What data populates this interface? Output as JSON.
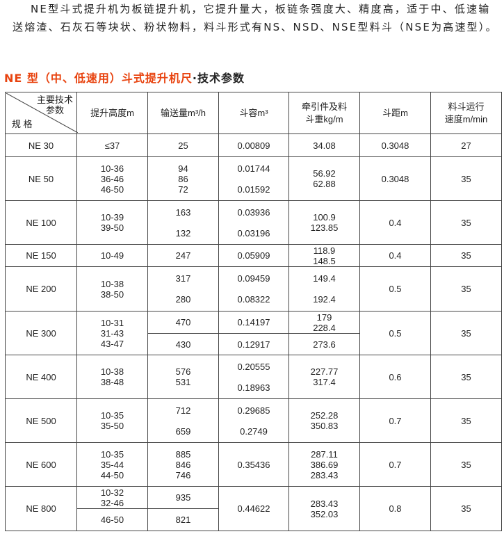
{
  "intro": "NE型斗式提升机为板链提升机，它提升量大，板链条强度大、精度高，适于中、低速输送熔渣、石灰石等块状、粉状物料，料斗形式有NS、NSD、NSE型料斗（NSE为高速型）。",
  "title": {
    "red": "NE 型（中、低速用）斗式提升机尺",
    "black": "·技术参数"
  },
  "colors": {
    "title_accent": "#e8430f"
  },
  "header": {
    "corner_top": "主要技术\n参数",
    "corner_bottom": "规 格",
    "cols": [
      "提升高度m",
      "输送量m³/h",
      "斗容m³",
      "牵引件及料\n斗重kg/m",
      "斗距m",
      "料斗运行\n速度m/min"
    ]
  },
  "rows": [
    {
      "spec": "NE 30",
      "height": "≤37",
      "flow": "25",
      "cap": "0.00809",
      "weight": "34.08",
      "pitch": "0.3048",
      "speed": "27"
    },
    {
      "spec": "NE 50",
      "height": "10-36\n36-46\n46-50",
      "flow": "94\n86\n72",
      "cap": "0.01744\n\n0.01592",
      "weight": "56.92\n62.88",
      "pitch": "0.3048",
      "speed": "35"
    },
    {
      "spec": "NE 100",
      "height": "10-39\n39-50",
      "flow": "163\n\n132",
      "cap": "0.03936\n\n0.03196",
      "weight": "100.9\n123.85",
      "pitch": "0.4",
      "speed": "35"
    },
    {
      "spec": "NE 150",
      "height": "10-49",
      "flow": "247",
      "cap": "0.05909",
      "weight": "118.9\n148.5",
      "pitch": "0.4",
      "speed": "35"
    },
    {
      "spec": "NE 200",
      "height": "10-38\n38-50",
      "flow": "317\n\n280",
      "cap": "0.09459\n\n0.08322",
      "weight": "149.4\n\n192.4",
      "pitch": "0.5",
      "speed": "35"
    },
    {
      "spec": "NE 300",
      "height": "10-31\n31-43\n43-47",
      "flow": [
        "470",
        "430"
      ],
      "cap": [
        "0.14197",
        "0.12917"
      ],
      "weight": [
        "179\n228.4",
        "273.6"
      ],
      "pitch": "0.5",
      "speed": "35"
    },
    {
      "spec": "NE 400",
      "height": "10-38\n38-48",
      "flow": "576\n531",
      "cap": "0.20555\n\n0.18963",
      "weight": "227.77\n317.4",
      "pitch": "0.6",
      "speed": "35"
    },
    {
      "spec": "NE 500",
      "height": "10-35\n35-50",
      "flow": "712\n\n659",
      "cap": "0.29685\n\n0.2749",
      "weight": "252.28\n350.83",
      "pitch": "0.7",
      "speed": "35"
    },
    {
      "spec": "NE 600",
      "height": "10-35\n35-44\n44-50",
      "flow": "885\n846\n746",
      "cap": "0.35436",
      "weight": "287.11\n386.69\n283.43",
      "pitch": "0.7",
      "speed": "35"
    },
    {
      "spec": "NE 800",
      "height": [
        "10-32\n32-46",
        "46-50"
      ],
      "flow": [
        "935",
        "821"
      ],
      "cap": "0.44622",
      "weight": "283.43\n352.03",
      "pitch": "0.8",
      "speed": "35"
    }
  ]
}
